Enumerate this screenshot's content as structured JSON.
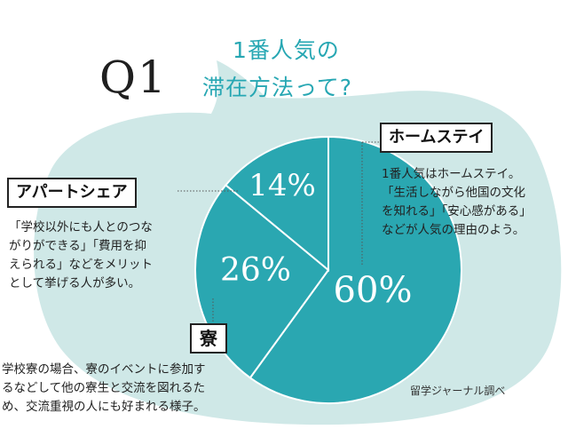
{
  "header": {
    "q_label": "Q1",
    "title_line_1": "1番人気の",
    "title_line_2": "滞在方法って?"
  },
  "chart_data": {
    "type": "pie",
    "slices": [
      {
        "label": "ホームステイ",
        "value": 60,
        "value_label": "60%"
      },
      {
        "label": "寮",
        "value": 26,
        "value_label": "26%"
      },
      {
        "label": "アパートシェア",
        "value": 14,
        "value_label": "14%"
      }
    ]
  },
  "callouts": {
    "homestay": {
      "tag": "ホームステイ",
      "lines": [
        "1番人気はホームステイ。",
        "「生活しながら他国の文化",
        "を知れる」「安心感がある」",
        "などが人気の理由のよう。"
      ]
    },
    "apart": {
      "tag": "アパートシェア",
      "lines": [
        "「学校以外にも人とのつな",
        "がりができる」「費用を抑",
        "えられる」などをメリット",
        "として挙げる人が多い。"
      ]
    },
    "dorm": {
      "tag": "寮",
      "lines": [
        "学校寮の場合、寮のイベントに参加す",
        "るなどして他の寮生と交流を図れるた",
        "め、交流重視の人にも好まれる様子。"
      ]
    }
  },
  "source": "留学ジャーナル調べ",
  "colors": {
    "bubble": "#cfe8e7",
    "pie": "#2aa7b1",
    "divider": "#ffffff",
    "title": "#27a7b3"
  }
}
